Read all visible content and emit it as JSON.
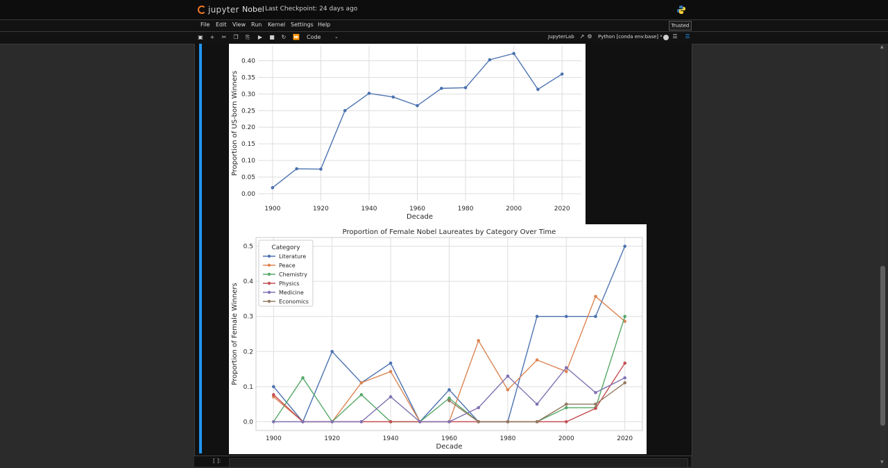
{
  "app": {
    "logo_text": "jupyter",
    "notebook_name": "Nobel",
    "checkpoint": "Last Checkpoint: 24 days ago",
    "trusted": "Trusted"
  },
  "menu": [
    "File",
    "Edit",
    "View",
    "Run",
    "Kernel",
    "Settings",
    "Help"
  ],
  "toolbar": {
    "cell_type": "Code",
    "jupyterlab_link": "JupyterLab",
    "kernel": "Python [conda env:base] *"
  },
  "next_cell_prompt": "[ ]:",
  "colors": {
    "accent": "#2196f3",
    "series": {
      "Literature": "#4c72b0",
      "Peace": "#dd8452",
      "Chemistry": "#55a868",
      "Physics": "#c44e52",
      "Medicine": "#8172b3",
      "Economics": "#937860"
    }
  },
  "chart_data": [
    {
      "type": "line",
      "title": "",
      "xlabel": "Decade",
      "ylabel": "Proportion of US-born Winners",
      "x": [
        1900,
        1910,
        1920,
        1930,
        1940,
        1950,
        1960,
        1970,
        1980,
        1990,
        2000,
        2010,
        2020
      ],
      "series": [
        {
          "values": [
            0.018,
            0.075,
            0.074,
            0.25,
            0.302,
            0.291,
            0.265,
            0.317,
            0.319,
            0.403,
            0.422,
            0.314,
            0.36
          ]
        }
      ],
      "xticks": [
        1900,
        1920,
        1940,
        1960,
        1980,
        2000,
        2020
      ],
      "yticks": [
        "0.00",
        "0.05",
        "0.10",
        "0.15",
        "0.20",
        "0.25",
        "0.30",
        "0.35",
        "0.40"
      ],
      "xlim": [
        1894,
        2028
      ],
      "ylim": [
        -0.021,
        0.445
      ],
      "grid": true
    },
    {
      "type": "line",
      "title": "Proportion of Female Nobel Laureates by Category Over Time",
      "xlabel": "Decade",
      "ylabel": "Proportion of Female Winners",
      "legend_title": "Category",
      "legend_position": "top-left",
      "x": [
        1900,
        1910,
        1920,
        1930,
        1940,
        1950,
        1960,
        1970,
        1980,
        1990,
        2000,
        2010,
        2020
      ],
      "series": [
        {
          "name": "Literature",
          "values": [
            0.1,
            0,
            0.2,
            0.111,
            0.167,
            0,
            0.091,
            0,
            0,
            0.3,
            0.3,
            0.3,
            0.5
          ]
        },
        {
          "name": "Peace",
          "values": [
            0.071,
            0,
            0,
            0.111,
            0.143,
            0,
            0,
            0.231,
            0.091,
            0.176,
            0.143,
            0.357,
            0.286
          ]
        },
        {
          "name": "Chemistry",
          "values": [
            0,
            0.125,
            0,
            0.077,
            0,
            0,
            0.067,
            0,
            0,
            0,
            0.04,
            0.04,
            0.3
          ]
        },
        {
          "name": "Physics",
          "values": [
            0.077,
            0,
            0,
            0,
            0,
            0,
            0,
            0,
            0,
            0,
            0,
            0.038,
            0.167
          ]
        },
        {
          "name": "Medicine",
          "values": [
            0,
            0,
            0,
            0,
            0.071,
            0,
            0,
            0.04,
            0.13,
            0.05,
            0.154,
            0.083,
            0.125
          ]
        },
        {
          "name": "Economics",
          "values": [
            null,
            null,
            null,
            null,
            null,
            null,
            0.06,
            0,
            0,
            0,
            0.05,
            0.05,
            0.111
          ]
        }
      ],
      "xticks": [
        1900,
        1920,
        1940,
        1960,
        1980,
        2000,
        2020
      ],
      "yticks": [
        "0.0",
        "0.1",
        "0.2",
        "0.3",
        "0.4",
        "0.5"
      ],
      "xlim": [
        1894,
        2026
      ],
      "ylim": [
        -0.025,
        0.525
      ],
      "grid": true
    }
  ]
}
